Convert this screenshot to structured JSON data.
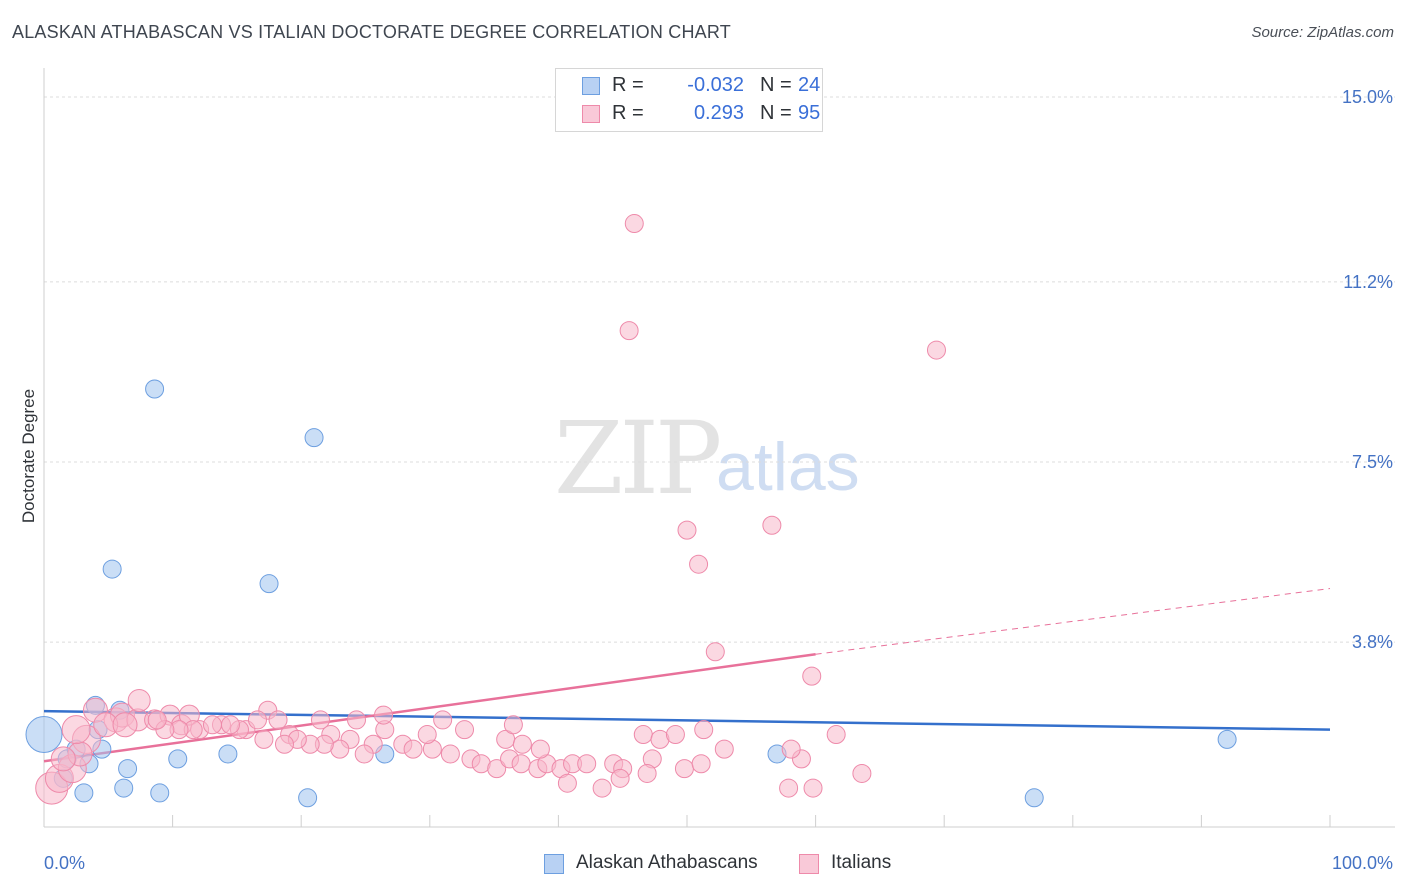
{
  "header": {
    "title": "ALASKAN ATHABASCAN VS ITALIAN DOCTORATE DEGREE CORRELATION CHART",
    "source": "Source: ZipAtlas.com"
  },
  "watermark": {
    "part1": "ZIP",
    "part2": "atlas"
  },
  "legend": {
    "rows": [
      {
        "r_label": "R =",
        "r_value": "-0.032",
        "n_label": "N =",
        "n_value": "24",
        "color": "#9fc2ef",
        "border": "#6d9fe0"
      },
      {
        "r_label": "R =",
        "r_value": "0.293",
        "n_label": "N =",
        "n_value": "95",
        "color": "#f7b8cb",
        "border": "#ee8aaa"
      }
    ]
  },
  "bottom_legend": {
    "items": [
      {
        "label": "Alaskan Athabascans",
        "color": "#b8d1f3",
        "border": "#6d9fe0"
      },
      {
        "label": "Italians",
        "color": "#f9c9d8",
        "border": "#ee8aaa"
      }
    ]
  },
  "chart_data": {
    "type": "scatter",
    "title": "ALASKAN ATHABASCAN VS ITALIAN DOCTORATE DEGREE CORRELATION CHART",
    "xlabel": "",
    "ylabel": "Doctorate Degree",
    "xlim": [
      0,
      100
    ],
    "ylim": [
      0,
      15
    ],
    "x_tick_labels": [
      "0.0%",
      "100.0%"
    ],
    "y_ticks": [
      3.8,
      7.5,
      11.2,
      15.0
    ],
    "y_tick_labels": [
      "3.8%",
      "7.5%",
      "11.2%",
      "15.0%"
    ],
    "grid": true,
    "series": [
      {
        "name": "Alaskan Athabascans",
        "color": "#9fc2ef",
        "stroke": "#6d9fe0",
        "points": [
          [
            0,
            1.9,
            18
          ],
          [
            1.8,
            1.4,
            9
          ],
          [
            2.5,
            1.6,
            9
          ],
          [
            3.5,
            1.3,
            9
          ],
          [
            4.5,
            1.6,
            9
          ],
          [
            4.2,
            2.0,
            9
          ],
          [
            4,
            2.5,
            9
          ],
          [
            5.9,
            2.4,
            9
          ],
          [
            3.1,
            0.7,
            9
          ],
          [
            6.2,
            0.8,
            9
          ],
          [
            9,
            0.7,
            9
          ],
          [
            6.5,
            1.2,
            9
          ],
          [
            10.4,
            1.4,
            9
          ],
          [
            14.3,
            1.5,
            9
          ],
          [
            8.6,
            9.0,
            9
          ],
          [
            5.3,
            5.3,
            9
          ],
          [
            17.5,
            5.0,
            9
          ],
          [
            21,
            8.0,
            9
          ],
          [
            20.5,
            0.6,
            9
          ],
          [
            26.5,
            1.5,
            9
          ],
          [
            57,
            1.5,
            9
          ],
          [
            77,
            0.6,
            9
          ],
          [
            92,
            1.8,
            9
          ],
          [
            1.5,
            1.0,
            9
          ]
        ],
        "trend": {
          "x": [
            0,
            100
          ],
          "y": [
            2.38,
            2.0
          ],
          "dashed_from": null
        }
      },
      {
        "name": "Italians",
        "color": "#f7b8cb",
        "stroke": "#ee8aaa",
        "points": [
          [
            0.6,
            0.8,
            16
          ],
          [
            1.2,
            1.0,
            14
          ],
          [
            2.2,
            1.2,
            14
          ],
          [
            3.3,
            1.8,
            14
          ],
          [
            2.8,
            1.5,
            12
          ],
          [
            4,
            2.4,
            12
          ],
          [
            5.6,
            2.2,
            12
          ],
          [
            6.1,
            2.3,
            12
          ],
          [
            7.3,
            2.2,
            11
          ],
          [
            7.4,
            2.6,
            11
          ],
          [
            8.6,
            2.2,
            10
          ],
          [
            9.8,
            2.3,
            10
          ],
          [
            10.7,
            2.1,
            10
          ],
          [
            11.3,
            2.3,
            10
          ],
          [
            12.1,
            2.0,
            9
          ],
          [
            13.8,
            2.1,
            9
          ],
          [
            15.7,
            2.0,
            9
          ],
          [
            17.4,
            2.4,
            9
          ],
          [
            18.2,
            2.2,
            9
          ],
          [
            19.1,
            1.9,
            9
          ],
          [
            21.5,
            2.2,
            9
          ],
          [
            22.3,
            1.9,
            9
          ],
          [
            23.8,
            1.8,
            9
          ],
          [
            24.3,
            2.2,
            9
          ],
          [
            26.5,
            2.0,
            9
          ],
          [
            27.9,
            1.7,
            9
          ],
          [
            28.7,
            1.6,
            9
          ],
          [
            30.2,
            1.6,
            9
          ],
          [
            31.6,
            1.5,
            9
          ],
          [
            33.2,
            1.4,
            9
          ],
          [
            34.0,
            1.3,
            9
          ],
          [
            35.2,
            1.2,
            9
          ],
          [
            36.2,
            1.4,
            9
          ],
          [
            37.1,
            1.3,
            9
          ],
          [
            38.4,
            1.2,
            9
          ],
          [
            39.1,
            1.3,
            9
          ],
          [
            40.2,
            1.2,
            9
          ],
          [
            41.1,
            1.3,
            9
          ],
          [
            42.2,
            1.3,
            9
          ],
          [
            44.3,
            1.3,
            9
          ],
          [
            45.0,
            1.2,
            9
          ],
          [
            47.3,
            1.4,
            9
          ],
          [
            46.6,
            1.9,
            9
          ],
          [
            47.9,
            1.8,
            9
          ],
          [
            49.1,
            1.9,
            9
          ],
          [
            51.3,
            2.0,
            9
          ],
          [
            52.9,
            1.6,
            9
          ],
          [
            40.7,
            0.9,
            9
          ],
          [
            43.4,
            0.8,
            9
          ],
          [
            44.8,
            1.0,
            9
          ],
          [
            46.9,
            1.1,
            9
          ],
          [
            49.8,
            1.2,
            9
          ],
          [
            51.1,
            1.3,
            9
          ],
          [
            57.9,
            0.8,
            9
          ],
          [
            59.8,
            0.8,
            9
          ],
          [
            58.9,
            1.4,
            9
          ],
          [
            61.6,
            1.9,
            9
          ],
          [
            63.6,
            1.1,
            9
          ],
          [
            35.9,
            1.8,
            9
          ],
          [
            37.2,
            1.7,
            9
          ],
          [
            38.6,
            1.6,
            9
          ],
          [
            36.5,
            2.1,
            9
          ],
          [
            32.7,
            2.0,
            9
          ],
          [
            31.0,
            2.2,
            9
          ],
          [
            29.8,
            1.9,
            9
          ],
          [
            26.4,
            2.3,
            9
          ],
          [
            25.6,
            1.7,
            9
          ],
          [
            24.9,
            1.5,
            9
          ],
          [
            23.0,
            1.6,
            9
          ],
          [
            21.8,
            1.7,
            9
          ],
          [
            20.7,
            1.7,
            9
          ],
          [
            19.7,
            1.8,
            9
          ],
          [
            18.7,
            1.7,
            9
          ],
          [
            17.1,
            1.8,
            9
          ],
          [
            16.6,
            2.2,
            9
          ],
          [
            15.2,
            2.0,
            9
          ],
          [
            14.5,
            2.1,
            9
          ],
          [
            13.1,
            2.1,
            9
          ],
          [
            11.6,
            2.0,
            9
          ],
          [
            10.5,
            2.0,
            9
          ],
          [
            9.4,
            2.0,
            9
          ],
          [
            8.8,
            2.2,
            9
          ],
          [
            58.1,
            1.6,
            9
          ],
          [
            52.2,
            3.6,
            9
          ],
          [
            50.9,
            5.4,
            9
          ],
          [
            50.0,
            6.1,
            9
          ],
          [
            56.6,
            6.2,
            9
          ],
          [
            45.5,
            10.2,
            9
          ],
          [
            45.9,
            12.4,
            9
          ],
          [
            59.7,
            3.1,
            9
          ],
          [
            69.4,
            9.8,
            9
          ],
          [
            2.5,
            2.0,
            14
          ],
          [
            1.5,
            1.4,
            12
          ],
          [
            4.8,
            2.1,
            12
          ],
          [
            6.3,
            2.1,
            12
          ]
        ],
        "trend": {
          "x": [
            0,
            60,
            100
          ],
          "y": [
            1.35,
            3.55,
            4.9
          ],
          "dashed_from": 60
        }
      }
    ]
  }
}
